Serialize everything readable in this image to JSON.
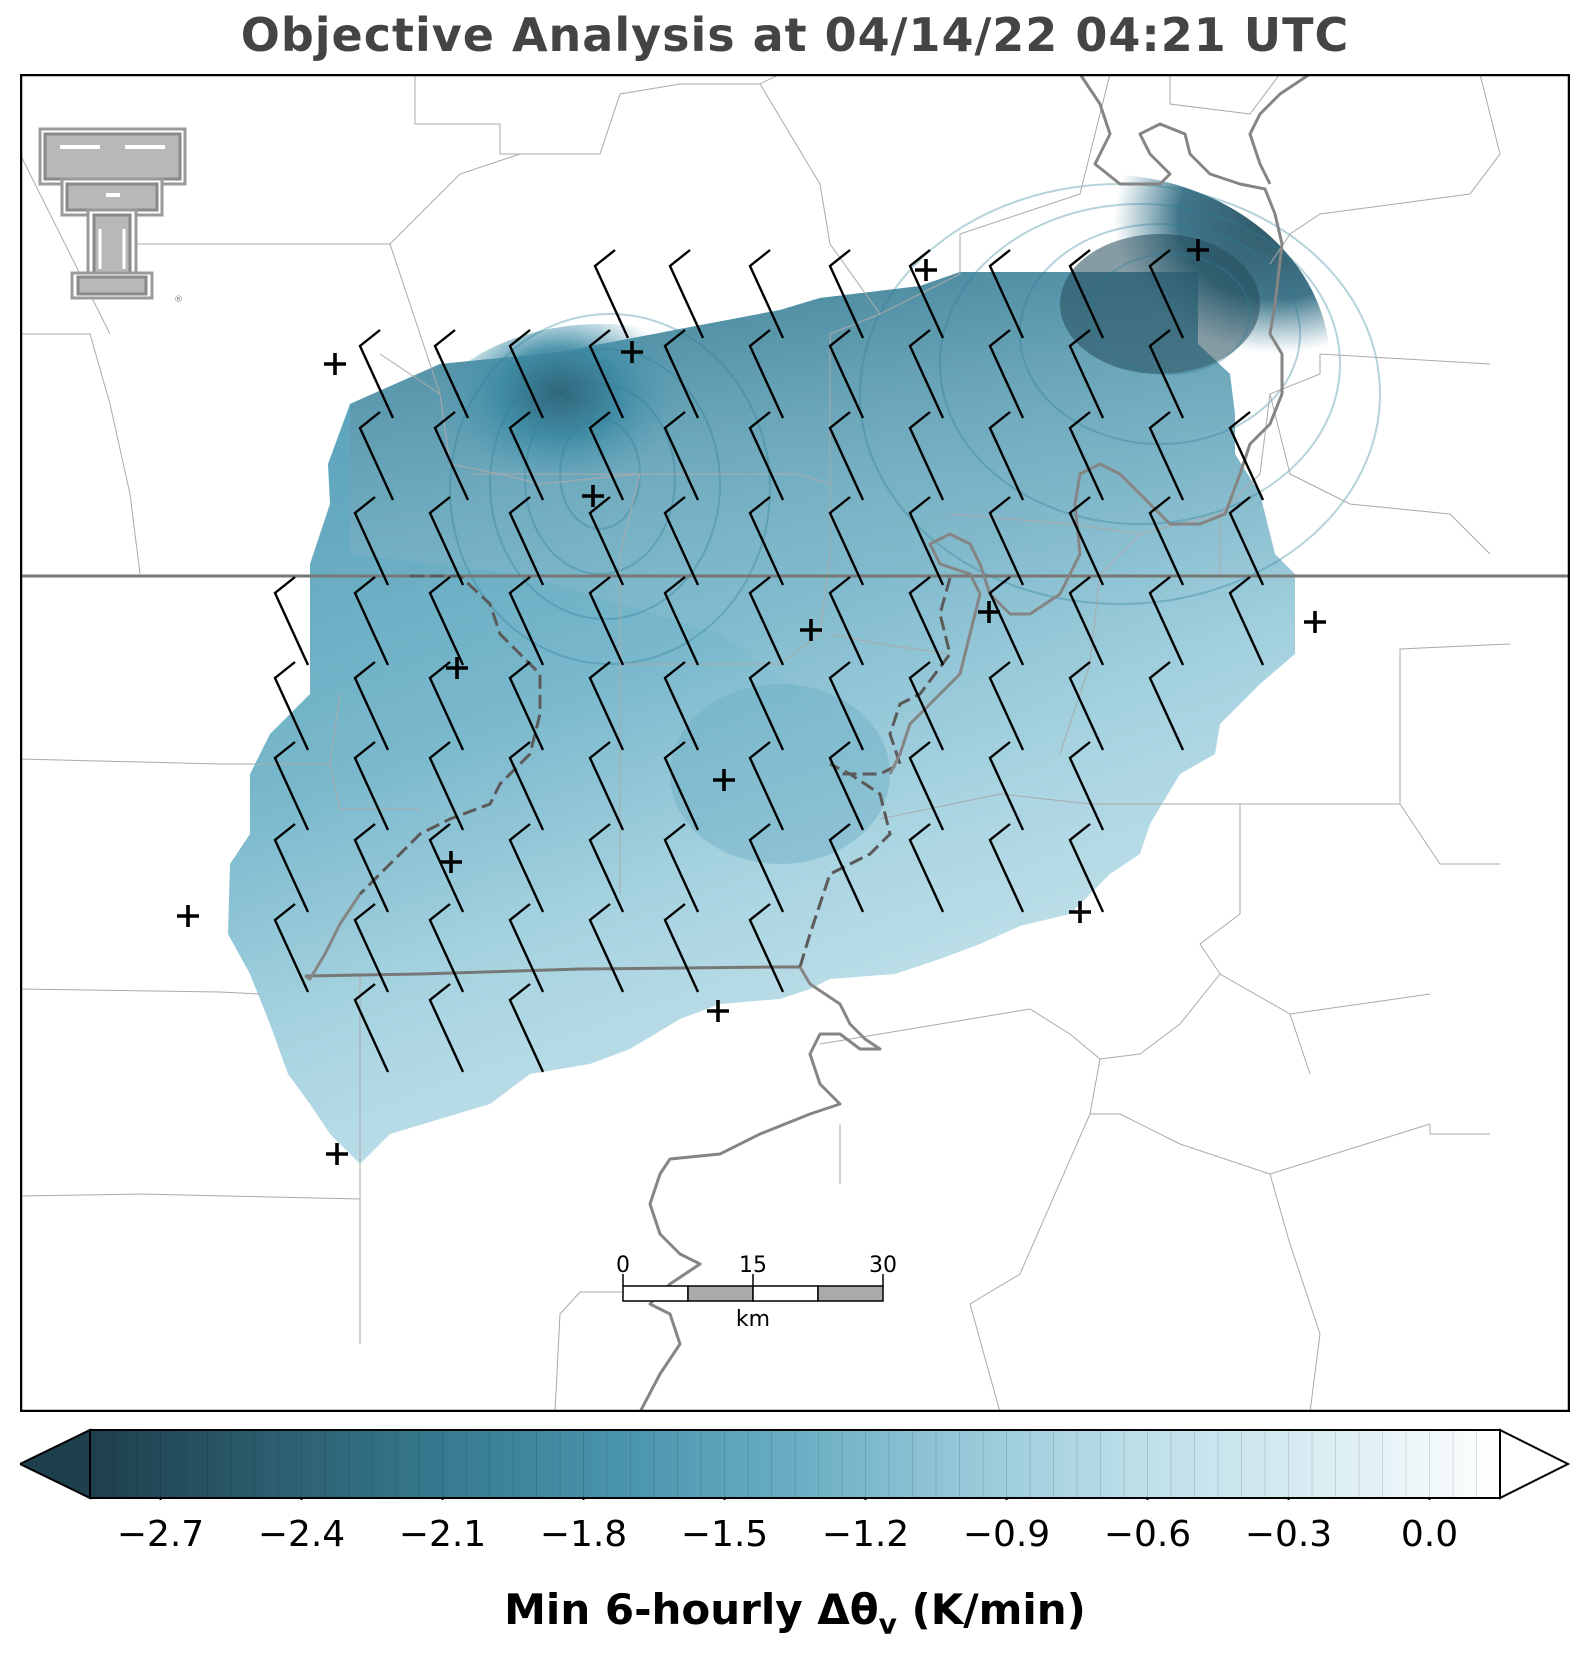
{
  "title": "Objective Analysis at 04/14/22 04:21 UTC",
  "colorbar": {
    "label": "Min 6-hourly Δθ",
    "label_subscript": "v",
    "label_units": "(K/min)",
    "ticks": [
      "−2.7",
      "−2.4",
      "−2.1",
      "−1.8",
      "−1.5",
      "−1.2",
      "−0.9",
      "−0.6",
      "−0.3",
      "0.0"
    ],
    "min": -2.85,
    "max": 0.15,
    "extend": "both",
    "colors": [
      "#1e3f4c",
      "#2b5b6c",
      "#367a8f",
      "#4a95ad",
      "#6aaec4",
      "#96c8d8",
      "#bfe0ea",
      "#dbeef3",
      "#ffffff"
    ]
  },
  "scalebar": {
    "labels": [
      "0",
      "15",
      "30"
    ],
    "unit": "km"
  },
  "logo": {
    "name": "texas-tech-double-t-logo",
    "mark": "®"
  },
  "colors": {
    "state_border": "#777777",
    "county_border": "#aaaaaa",
    "river": "#808080",
    "frame": "#000000"
  }
}
